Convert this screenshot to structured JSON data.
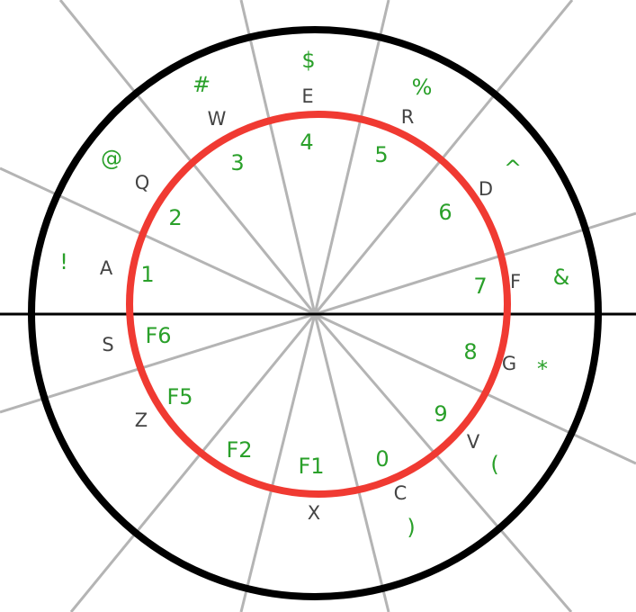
{
  "colors": {
    "background": "#ffffff",
    "outer_ring": "#000000",
    "inner_ring": "#f03a32",
    "spokes": "#b4b4b4",
    "axis": "#000000",
    "letters": "#444444",
    "numbers": "#2aa02a",
    "symbols": "#2aa02a"
  },
  "labels": {
    "letters": [
      "E",
      "R",
      "D",
      "F",
      "G",
      "V",
      "C",
      "X",
      "Z",
      "S",
      "A",
      "Q",
      "W"
    ],
    "numbers": [
      "4",
      "5",
      "6",
      "7",
      "8",
      "9",
      "0",
      "F1",
      "F2",
      "F5",
      "F6",
      "1",
      "2",
      "3"
    ],
    "symbols": [
      "$",
      "%",
      "^",
      "&",
      "*",
      "(",
      ")",
      "!",
      "@",
      "#"
    ]
  }
}
